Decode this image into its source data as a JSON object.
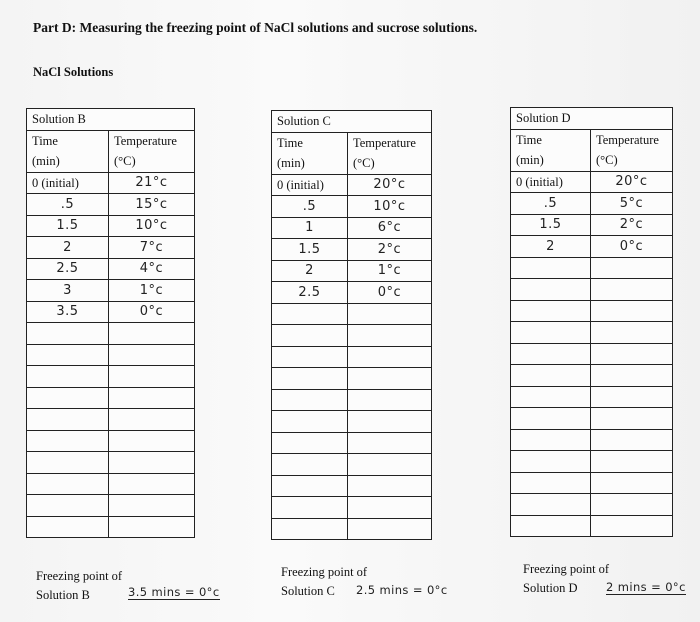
{
  "title": "Part D: Measuring the freezing point of NaCl solutions and sucrose solutions.",
  "subtitle": "NaCl Solutions",
  "tables": [
    {
      "name": "Solution B",
      "time_header": "Time",
      "time_unit": "(min)",
      "temp_header": "Temperature",
      "temp_unit": "(°C)",
      "rows": [
        [
          "0 (initial)",
          "21°c"
        ],
        [
          ".5",
          "15°c"
        ],
        [
          "1.5",
          "10°c"
        ],
        [
          "2",
          "7°c"
        ],
        [
          "2.5",
          "4°c"
        ],
        [
          "3",
          "1°c"
        ],
        [
          "3.5",
          "0°c"
        ]
      ]
    },
    {
      "name": "Solution C",
      "time_header": "Time",
      "time_unit": "(min)",
      "temp_header": "Temperature",
      "temp_unit": "(°C)",
      "rows": [
        [
          "0 (initial)",
          "20°c"
        ],
        [
          ".5",
          "10°c"
        ],
        [
          "1",
          "6°c"
        ],
        [
          "1.5",
          "2°c"
        ],
        [
          "2",
          "1°c"
        ],
        [
          "2.5",
          "0°c"
        ]
      ]
    },
    {
      "name": "Solution D",
      "time_header": "Time",
      "time_unit": "(min)",
      "temp_header": "Temperature",
      "temp_unit": "(°C)",
      "rows": [
        [
          "0 (initial)",
          "20°c"
        ],
        [
          ".5",
          "5°c"
        ],
        [
          "1.5",
          "2°c"
        ],
        [
          "2",
          "0°c"
        ]
      ]
    }
  ],
  "freezing_points": [
    {
      "label": "Freezing point of",
      "solution": "Solution B",
      "value": "3.5 mins = 0°c"
    },
    {
      "label": "Freezing point of",
      "solution": "Solution C",
      "value": "2.5 mins = 0°c"
    },
    {
      "label": "Freezing point of",
      "solution": "Solution D",
      "value": "2 mins = 0°c"
    }
  ]
}
